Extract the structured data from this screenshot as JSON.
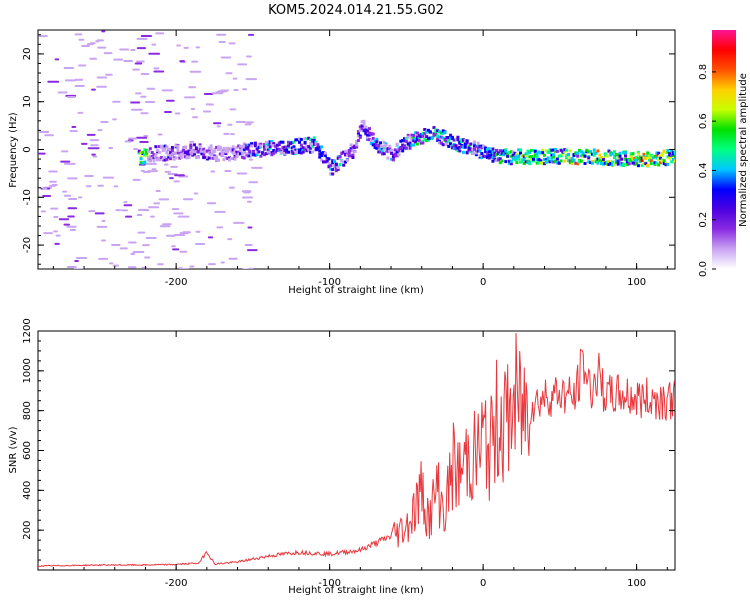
{
  "title": "KOM5.2024.014.21.55.G02",
  "chart_data": [
    {
      "type": "heatmap",
      "xlabel": "Height of straight line (km)",
      "ylabel": "Frequency (Hz)",
      "xlim": [
        -290,
        125
      ],
      "ylim": [
        -25,
        25
      ],
      "xticks": [
        -200,
        -100,
        0,
        100
      ],
      "yticks": [
        -20,
        -10,
        0,
        10,
        20
      ],
      "colorbar": {
        "label": "Normalized spectral amplitude",
        "range": [
          0,
          0.97
        ],
        "ticks": [
          "0.0",
          "0.2",
          "0.4",
          "0.6",
          "0.8"
        ],
        "tick_values": [
          0,
          0.2,
          0.4,
          0.6,
          0.8
        ],
        "colormap": [
          "#ffffff",
          "#c9a4f2",
          "#8a2be2",
          "#4b00e0",
          "#0000ff",
          "#00c8ff",
          "#00ff80",
          "#00e000",
          "#c8ff00",
          "#ffd000",
          "#ff5000",
          "#ff0000",
          "#ff1493"
        ]
      },
      "ridge": [
        {
          "x": -220,
          "y": -1,
          "amp": 0.25
        },
        {
          "x": -200,
          "y": -0.5,
          "amp": 0.3
        },
        {
          "x": -185,
          "y": -0.5,
          "amp": 0.35
        },
        {
          "x": -170,
          "y": -1,
          "amp": 0.2
        },
        {
          "x": -150,
          "y": 0,
          "amp": 0.4
        },
        {
          "x": -130,
          "y": 0.5,
          "amp": 0.45
        },
        {
          "x": -110,
          "y": 1,
          "amp": 0.5
        },
        {
          "x": -100,
          "y": -4,
          "amp": 0.45
        },
        {
          "x": -85,
          "y": 0,
          "amp": 0.35
        },
        {
          "x": -80,
          "y": 5,
          "amp": 0.3
        },
        {
          "x": -70,
          "y": 1,
          "amp": 0.45
        },
        {
          "x": -60,
          "y": -1,
          "amp": 0.35
        },
        {
          "x": -50,
          "y": 1.5,
          "amp": 0.45
        },
        {
          "x": -35,
          "y": 3.5,
          "amp": 0.55
        },
        {
          "x": -20,
          "y": 1.5,
          "amp": 0.5
        },
        {
          "x": -5,
          "y": 0,
          "amp": 0.45
        },
        {
          "x": 10,
          "y": -1.5,
          "amp": 0.5
        },
        {
          "x": 30,
          "y": -1.5,
          "amp": 0.75
        },
        {
          "x": 50,
          "y": -1.5,
          "amp": 0.65
        },
        {
          "x": 70,
          "y": -1.5,
          "amp": 0.8
        },
        {
          "x": 90,
          "y": -2,
          "amp": 0.6
        },
        {
          "x": 110,
          "y": -2,
          "amp": 0.85
        },
        {
          "x": 125,
          "y": -1.5,
          "amp": 0.7
        }
      ]
    },
    {
      "type": "line",
      "xlabel": "Height of straight line (km)",
      "ylabel": "SNR (v/v)",
      "xlim": [
        -290,
        125
      ],
      "ylim": [
        0,
        1200
      ],
      "xticks": [
        -200,
        -100,
        0,
        100
      ],
      "yticks": [
        200,
        400,
        600,
        800,
        1000,
        1200
      ],
      "color": "#e8383d",
      "x": [
        -290,
        -250,
        -220,
        -200,
        -185,
        -180,
        -175,
        -160,
        -140,
        -120,
        -100,
        -80,
        -60,
        -50,
        -45,
        -40,
        -35,
        -30,
        -25,
        -20,
        -15,
        -10,
        -5,
        0,
        5,
        10,
        15,
        20,
        25,
        30,
        40,
        50,
        60,
        65,
        70,
        75,
        80,
        90,
        100,
        110,
        125
      ],
      "values": [
        20,
        25,
        25,
        28,
        35,
        95,
        30,
        40,
        70,
        90,
        80,
        100,
        170,
        220,
        300,
        400,
        250,
        420,
        280,
        520,
        470,
        580,
        560,
        650,
        600,
        780,
        720,
        840,
        800,
        820,
        870,
        890,
        860,
        1050,
        900,
        980,
        870,
        880,
        860,
        860,
        855
      ]
    }
  ]
}
